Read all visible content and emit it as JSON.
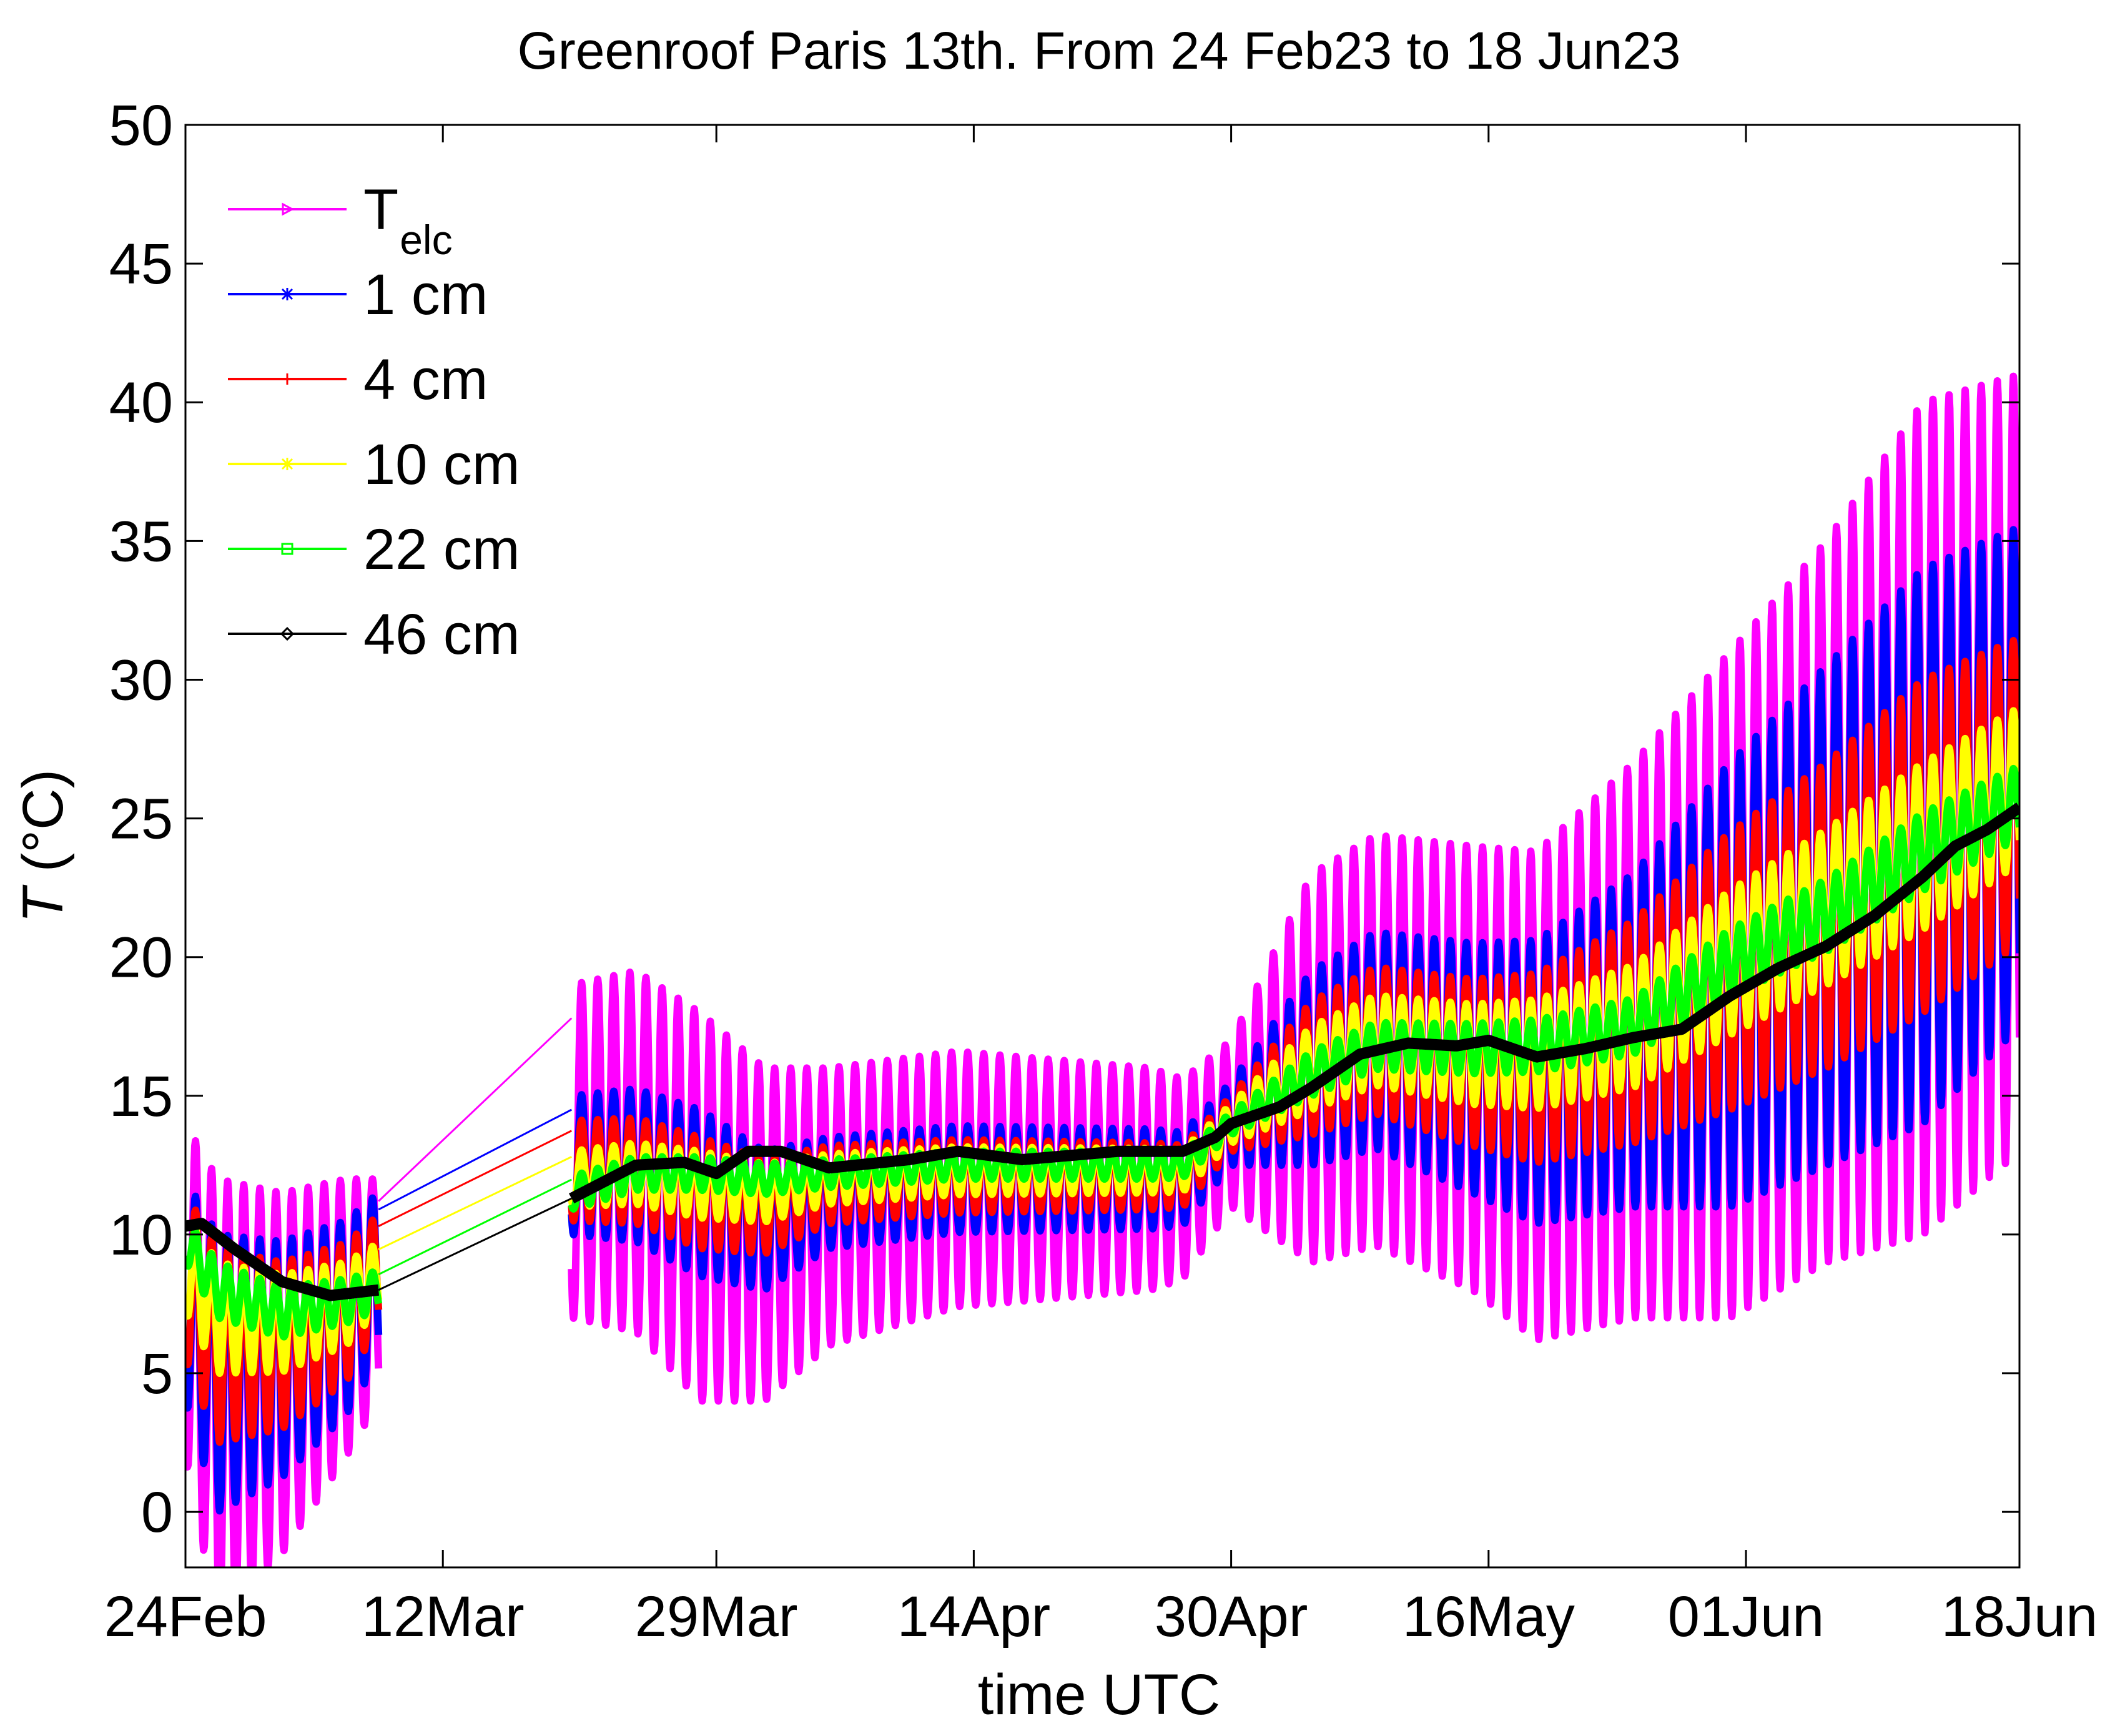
{
  "chart_data": {
    "type": "line",
    "title": "Greenroof Paris 13th. From 24 Feb23 to 18 Jun23",
    "xlabel": "time UTC",
    "ylabel_italic": "T",
    "ylabel_rest": " (°C)",
    "ylim": [
      -2,
      50
    ],
    "yticks": [
      0,
      5,
      10,
      15,
      20,
      25,
      30,
      35,
      40,
      45,
      50
    ],
    "xlim_days": [
      0,
      114
    ],
    "xticks": [
      {
        "day": 0,
        "label": "24Feb"
      },
      {
        "day": 16,
        "label": "12Mar"
      },
      {
        "day": 33,
        "label": "29Mar"
      },
      {
        "day": 49,
        "label": "14Apr"
      },
      {
        "day": 65,
        "label": "30Apr"
      },
      {
        "day": 81,
        "label": "16May"
      },
      {
        "day": 97,
        "label": "01Jun"
      },
      {
        "day": 114,
        "label": "18Jun"
      }
    ],
    "legend_position": "top-left",
    "gap_days": [
      12,
      24
    ],
    "series": [
      {
        "name": "T",
        "subscript": "elc",
        "color": "#ff00ff",
        "marker": "triangle-right",
        "mean": [
          [
            0,
            8
          ],
          [
            2,
            4
          ],
          [
            6,
            5
          ],
          [
            10,
            7
          ],
          [
            12,
            8
          ],
          [
            24,
            13
          ],
          [
            28,
            13
          ],
          [
            32,
            11
          ],
          [
            36,
            10
          ],
          [
            40,
            11
          ],
          [
            48,
            12
          ],
          [
            56,
            12
          ],
          [
            62,
            12
          ],
          [
            65,
            14
          ],
          [
            70,
            16
          ],
          [
            74,
            17
          ],
          [
            80,
            16
          ],
          [
            84,
            15
          ],
          [
            90,
            17
          ],
          [
            96,
            19
          ],
          [
            102,
            22
          ],
          [
            108,
            25
          ],
          [
            114,
            27
          ]
        ],
        "amp": [
          [
            0,
            6
          ],
          [
            2,
            8
          ],
          [
            10,
            5
          ],
          [
            12,
            4
          ],
          [
            24,
            6
          ],
          [
            32,
            7
          ],
          [
            40,
            5
          ],
          [
            60,
            4
          ],
          [
            65,
            3
          ],
          [
            70,
            7
          ],
          [
            80,
            8
          ],
          [
            90,
            10
          ],
          [
            96,
            12
          ],
          [
            102,
            13
          ],
          [
            108,
            15
          ],
          [
            114,
            14
          ]
        ]
      },
      {
        "name": "1 cm",
        "subscript": "",
        "color": "#0000ff",
        "marker": "star",
        "mean": [
          [
            0,
            8
          ],
          [
            2,
            5
          ],
          [
            6,
            5.5
          ],
          [
            10,
            7
          ],
          [
            12,
            8.5
          ],
          [
            24,
            12.5
          ],
          [
            28,
            12.5
          ],
          [
            32,
            11.5
          ],
          [
            36,
            10.5
          ],
          [
            40,
            11.5
          ],
          [
            48,
            12
          ],
          [
            56,
            12
          ],
          [
            62,
            12
          ],
          [
            65,
            14
          ],
          [
            70,
            16
          ],
          [
            74,
            17
          ],
          [
            80,
            16
          ],
          [
            84,
            15.5
          ],
          [
            90,
            17
          ],
          [
            96,
            19
          ],
          [
            102,
            21.5
          ],
          [
            108,
            24
          ],
          [
            114,
            26.5
          ]
        ],
        "amp": [
          [
            0,
            4
          ],
          [
            2,
            5
          ],
          [
            10,
            3.5
          ],
          [
            12,
            3
          ],
          [
            24,
            2.5
          ],
          [
            32,
            3
          ],
          [
            40,
            2
          ],
          [
            60,
            1.8
          ],
          [
            65,
            1.5
          ],
          [
            70,
            3.5
          ],
          [
            80,
            4.5
          ],
          [
            90,
            6
          ],
          [
            96,
            8
          ],
          [
            102,
            9
          ],
          [
            108,
            10
          ],
          [
            114,
            9
          ]
        ]
      },
      {
        "name": "4 cm",
        "subscript": "",
        "color": "#ff0000",
        "marker": "plus",
        "mean": [
          [
            0,
            8.5
          ],
          [
            2,
            6
          ],
          [
            6,
            6
          ],
          [
            10,
            7.2
          ],
          [
            12,
            8.7
          ],
          [
            24,
            12.3
          ],
          [
            28,
            12.3
          ],
          [
            32,
            11.5
          ],
          [
            36,
            11
          ],
          [
            40,
            11.8
          ],
          [
            48,
            12.1
          ],
          [
            56,
            12.1
          ],
          [
            62,
            12.1
          ],
          [
            65,
            14
          ],
          [
            70,
            16
          ],
          [
            74,
            17
          ],
          [
            80,
            16.2
          ],
          [
            84,
            16
          ],
          [
            90,
            17.3
          ],
          [
            96,
            19.5
          ],
          [
            102,
            21.5
          ],
          [
            108,
            24
          ],
          [
            114,
            26
          ]
        ],
        "amp": [
          [
            0,
            3
          ],
          [
            2,
            3.5
          ],
          [
            10,
            2.5
          ],
          [
            12,
            2
          ],
          [
            24,
            1.8
          ],
          [
            32,
            2
          ],
          [
            40,
            1.4
          ],
          [
            60,
            1.2
          ],
          [
            65,
            1
          ],
          [
            70,
            2.4
          ],
          [
            80,
            3
          ],
          [
            90,
            4
          ],
          [
            96,
            5
          ],
          [
            102,
            5.5
          ],
          [
            108,
            6
          ],
          [
            114,
            5.5
          ]
        ]
      },
      {
        "name": "10 cm",
        "subscript": "",
        "color": "#ffff00",
        "marker": "star",
        "mean": [
          [
            0,
            9
          ],
          [
            2,
            7
          ],
          [
            6,
            6.8
          ],
          [
            10,
            7.5
          ],
          [
            12,
            8.5
          ],
          [
            24,
            12
          ],
          [
            28,
            12.2
          ],
          [
            32,
            11.8
          ],
          [
            36,
            11.5
          ],
          [
            40,
            12
          ],
          [
            48,
            12.3
          ],
          [
            56,
            12.3
          ],
          [
            62,
            12.3
          ],
          [
            65,
            14
          ],
          [
            70,
            16
          ],
          [
            74,
            17
          ],
          [
            80,
            16.5
          ],
          [
            84,
            16.5
          ],
          [
            90,
            17.5
          ],
          [
            96,
            19.8
          ],
          [
            102,
            21.8
          ],
          [
            108,
            24
          ],
          [
            114,
            26.2
          ]
        ],
        "amp": [
          [
            0,
            1.8
          ],
          [
            2,
            2
          ],
          [
            10,
            1.5
          ],
          [
            12,
            1.2
          ],
          [
            24,
            1
          ],
          [
            32,
            1.2
          ],
          [
            40,
            0.9
          ],
          [
            60,
            0.8
          ],
          [
            65,
            0.7
          ],
          [
            70,
            1.5
          ],
          [
            80,
            1.8
          ],
          [
            90,
            2.2
          ],
          [
            96,
            2.6
          ],
          [
            102,
            2.8
          ],
          [
            108,
            3
          ],
          [
            114,
            2.8
          ]
        ]
      },
      {
        "name": "22 cm",
        "subscript": "",
        "color": "#00ff00",
        "marker": "square",
        "mean": [
          [
            0,
            9.8
          ],
          [
            2,
            8
          ],
          [
            6,
            7.2
          ],
          [
            10,
            7.6
          ],
          [
            12,
            8
          ],
          [
            24,
            11.5
          ],
          [
            28,
            12.2
          ],
          [
            32,
            12.2
          ],
          [
            36,
            12
          ],
          [
            40,
            12.2
          ],
          [
            48,
            12.5
          ],
          [
            56,
            12.5
          ],
          [
            62,
            12.5
          ],
          [
            65,
            14
          ],
          [
            70,
            15.8
          ],
          [
            74,
            16.8
          ],
          [
            80,
            16.7
          ],
          [
            84,
            16.8
          ],
          [
            90,
            17.5
          ],
          [
            96,
            19.8
          ],
          [
            102,
            21.5
          ],
          [
            108,
            23.8
          ],
          [
            114,
            25.6
          ]
        ],
        "amp": [
          [
            0,
            0.8
          ],
          [
            2,
            1
          ],
          [
            10,
            0.8
          ],
          [
            12,
            0.7
          ],
          [
            24,
            0.6
          ],
          [
            32,
            0.6
          ],
          [
            40,
            0.5
          ],
          [
            60,
            0.5
          ],
          [
            65,
            0.4
          ],
          [
            70,
            0.8
          ],
          [
            80,
            0.9
          ],
          [
            90,
            1
          ],
          [
            96,
            1.2
          ],
          [
            102,
            1.3
          ],
          [
            108,
            1.4
          ],
          [
            114,
            1.3
          ]
        ]
      },
      {
        "name": "46 cm",
        "subscript": "",
        "color": "#000000",
        "marker": "diamond",
        "mean": [
          [
            0,
            10.3
          ],
          [
            1,
            10.4
          ],
          [
            3,
            9.5
          ],
          [
            6,
            8.3
          ],
          [
            9,
            7.8
          ],
          [
            12,
            8
          ],
          [
            24,
            11.3
          ],
          [
            28,
            12.5
          ],
          [
            31,
            12.6
          ],
          [
            33,
            12.2
          ],
          [
            35,
            13
          ],
          [
            37,
            13
          ],
          [
            40,
            12.4
          ],
          [
            45,
            12.7
          ],
          [
            48,
            13
          ],
          [
            52,
            12.7
          ],
          [
            58,
            13
          ],
          [
            62,
            13
          ],
          [
            64,
            13.5
          ],
          [
            65,
            14
          ],
          [
            68,
            14.6
          ],
          [
            70,
            15.3
          ],
          [
            73,
            16.5
          ],
          [
            76,
            16.9
          ],
          [
            79,
            16.8
          ],
          [
            81,
            17
          ],
          [
            84,
            16.4
          ],
          [
            87,
            16.7
          ],
          [
            90,
            17.1
          ],
          [
            93,
            17.4
          ],
          [
            96,
            18.6
          ],
          [
            99,
            19.6
          ],
          [
            102,
            20.4
          ],
          [
            105,
            21.5
          ],
          [
            108,
            22.9
          ],
          [
            110,
            24
          ],
          [
            112,
            24.6
          ],
          [
            114,
            25.4
          ]
        ],
        "amp": [
          [
            0,
            0
          ],
          [
            114,
            0
          ]
        ]
      }
    ]
  }
}
